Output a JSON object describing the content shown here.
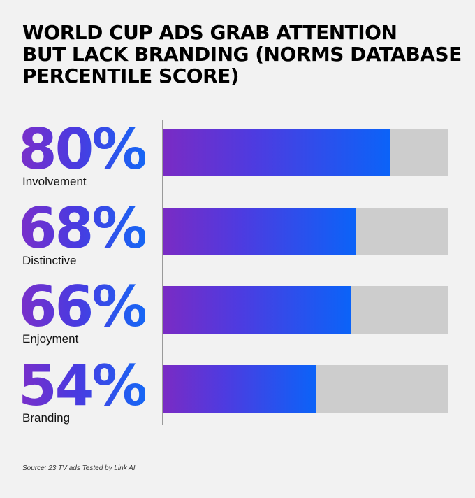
{
  "chart_data": {
    "type": "bar",
    "orientation": "horizontal",
    "title": "WORLD CUP ADS GRAB ATTENTION BUT LACK BRANDING (NORMS DATABASE PERCENTILE SCORE)",
    "title_lines": [
      "WORLD CUP ADS GRAB ATTENTION",
      "BUT LACK BRANDING (NORMS DATABASE",
      "PERCENTILE SCORE)"
    ],
    "categories": [
      "Involvement",
      "Distinctive",
      "Enjoyment",
      "Branding"
    ],
    "values": [
      80,
      68,
      66,
      54
    ],
    "value_labels": [
      "80%",
      "68%",
      "66%",
      "54%"
    ],
    "xlim": [
      0,
      100
    ],
    "grid": false,
    "legend": "none",
    "colors": {
      "bar_start": "#7a2bc4",
      "bar_end": "#0b63f8",
      "track": "#cdcdcd",
      "background": "#f2f2f2"
    },
    "source": "Source: 23 TV ads Tested by Link AI"
  }
}
